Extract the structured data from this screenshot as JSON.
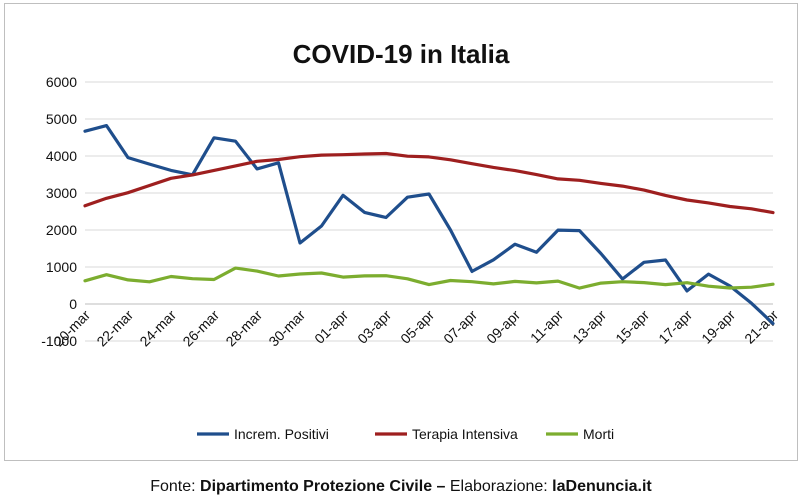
{
  "chart_data": {
    "type": "line",
    "title": "COVID-19 in Italia",
    "xlabel": "",
    "ylabel": "",
    "ylim": [
      -1000,
      6000
    ],
    "yticks": [
      -1000,
      0,
      1000,
      2000,
      3000,
      4000,
      5000,
      6000
    ],
    "grid": true,
    "legend": "bottom",
    "x": [
      "20-mar",
      "21-mar",
      "22-mar",
      "23-mar",
      "24-mar",
      "25-mar",
      "26-mar",
      "27-mar",
      "28-mar",
      "29-mar",
      "30-mar",
      "31-mar",
      "01-apr",
      "02-apr",
      "03-apr",
      "04-apr",
      "05-apr",
      "06-apr",
      "07-apr",
      "08-apr",
      "09-apr",
      "10-apr",
      "11-apr",
      "12-apr",
      "13-apr",
      "14-apr",
      "15-apr",
      "16-apr",
      "17-apr",
      "18-apr",
      "19-apr",
      "20-apr",
      "21-apr"
    ],
    "xtick_labels": [
      "20-mar",
      "22-mar",
      "24-mar",
      "26-mar",
      "28-mar",
      "30-mar",
      "01-apr",
      "03-apr",
      "05-apr",
      "07-apr",
      "09-apr",
      "11-apr",
      "13-apr",
      "15-apr",
      "17-apr",
      "19-apr",
      "21-apr"
    ],
    "series": [
      {
        "name": "Increm. Positivi",
        "color": "#1f4e8c",
        "values": [
          4670,
          4821,
          3957,
          3780,
          3612,
          3491,
          4492,
          4401,
          3651,
          3815,
          1648,
          2107,
          2937,
          2477,
          2339,
          2886,
          2972,
          2000,
          880,
          1195,
          1615,
          1396,
          1996,
          1984,
          1363,
          675,
          1127,
          1189,
          355,
          809,
          486,
          20,
          -528
        ]
      },
      {
        "name": "Terapia Intensiva",
        "color": "#9e1f1f",
        "values": [
          2655,
          2857,
          3009,
          3204,
          3396,
          3489,
          3612,
          3732,
          3856,
          3906,
          3981,
          4023,
          4035,
          4053,
          4068,
          3994,
          3977,
          3898,
          3792,
          3693,
          3605,
          3497,
          3381,
          3343,
          3260,
          3186,
          3079,
          2936,
          2812,
          2733,
          2635,
          2573,
          2471
        ]
      },
      {
        "name": "Morti",
        "color": "#7cad2f",
        "values": [
          627,
          793,
          651,
          601,
          743,
          683,
          662,
          969,
          889,
          756,
          812,
          837,
          727,
          760,
          766,
          681,
          525,
          636,
          604,
          542,
          610,
          570,
          619,
          431,
          566,
          602,
          578,
          525,
          575,
          482,
          433,
          454,
          534
        ]
      }
    ]
  },
  "footer": {
    "prefix": "Fonte: ",
    "source": "Dipartimento Protezione Civile –",
    "middle": " Elaborazione: ",
    "site": "laDenuncia.it"
  }
}
